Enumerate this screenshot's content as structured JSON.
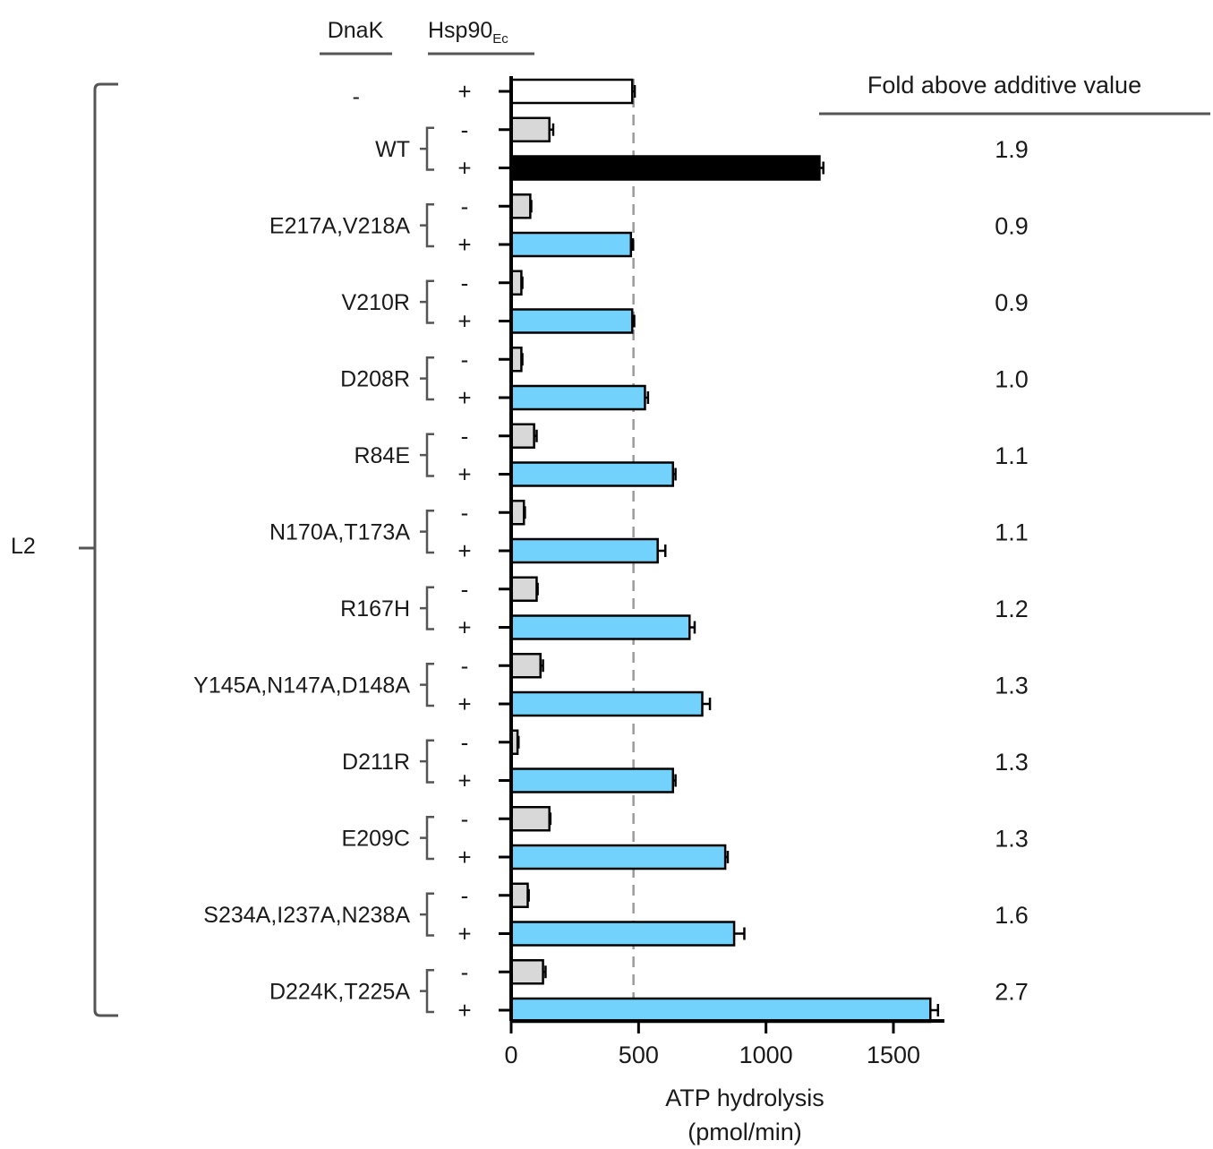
{
  "chart_data": {
    "type": "bar",
    "orientation": "horizontal",
    "column_headers": {
      "dnak": "DnaK",
      "hsp90": "Hsp90",
      "hsp90_subscript": "Ec"
    },
    "fold_header": "Fold above additive value",
    "group_label": "L2",
    "xlabel_line1": "ATP hydrolysis",
    "xlabel_line2": "(pmol/min)",
    "xlim": [
      0,
      1700
    ],
    "xticks": [
      0,
      500,
      1000,
      1500
    ],
    "reference_line": 480,
    "colors": {
      "dnak_alone": "#ffffff",
      "hsp90_alone": "#d8d8d8",
      "wt": "#000000",
      "mutant": "#73d2fb"
    },
    "rows": [
      {
        "label": "-",
        "hsp90": "+",
        "value": 475,
        "error": 10,
        "kind": "dnak_alone"
      },
      {
        "label": "WT",
        "hsp90_minus": "-",
        "hsp90_plus": "+",
        "minus_value": 150,
        "minus_error": 15,
        "plus_value": 1210,
        "plus_error": 15,
        "fold": "1.9",
        "kind": "wt"
      },
      {
        "label": "E217A,V218A",
        "hsp90_minus": "-",
        "hsp90_plus": "+",
        "minus_value": 75,
        "minus_error": 0,
        "plus_value": 470,
        "plus_error": 8,
        "fold": "0.9",
        "kind": "mutant"
      },
      {
        "label": "V210R",
        "hsp90_minus": "-",
        "hsp90_plus": "+",
        "minus_value": 40,
        "minus_error": 0,
        "plus_value": 475,
        "plus_error": 8,
        "fold": "0.9",
        "kind": "mutant"
      },
      {
        "label": "D208R",
        "hsp90_minus": "-",
        "hsp90_plus": "+",
        "minus_value": 40,
        "minus_error": 0,
        "plus_value": 525,
        "plus_error": 12,
        "fold": "1.0",
        "kind": "mutant"
      },
      {
        "label": "R84E",
        "hsp90_minus": "-",
        "hsp90_plus": "+",
        "minus_value": 90,
        "minus_error": 10,
        "plus_value": 635,
        "plus_error": 10,
        "fold": "1.1",
        "kind": "mutant"
      },
      {
        "label": "N170A,T173A",
        "hsp90_minus": "-",
        "hsp90_plus": "+",
        "minus_value": 50,
        "minus_error": 0,
        "plus_value": 575,
        "plus_error": 30,
        "fold": "1.1",
        "kind": "mutant"
      },
      {
        "label": "R167H",
        "hsp90_minus": "-",
        "hsp90_plus": "+",
        "minus_value": 100,
        "minus_error": 0,
        "plus_value": 700,
        "plus_error": 20,
        "fold": "1.2",
        "kind": "mutant"
      },
      {
        "label": "Y145A,N147A,D148A",
        "hsp90_minus": "-",
        "hsp90_plus": "+",
        "minus_value": 115,
        "minus_error": 10,
        "plus_value": 750,
        "plus_error": 30,
        "fold": "1.3",
        "kind": "mutant"
      },
      {
        "label": "D211R",
        "hsp90_minus": "-",
        "hsp90_plus": "+",
        "minus_value": 25,
        "minus_error": 0,
        "plus_value": 635,
        "plus_error": 10,
        "fold": "1.3",
        "kind": "mutant"
      },
      {
        "label": "E209C",
        "hsp90_minus": "-",
        "hsp90_plus": "+",
        "minus_value": 150,
        "minus_error": 0,
        "plus_value": 840,
        "plus_error": 10,
        "fold": "1.3",
        "kind": "mutant"
      },
      {
        "label": "S234A,I237A,N238A",
        "hsp90_minus": "-",
        "hsp90_plus": "+",
        "minus_value": 65,
        "minus_error": 0,
        "plus_value": 875,
        "plus_error": 40,
        "fold": "1.6",
        "kind": "mutant"
      },
      {
        "label": "D224K,T225A",
        "hsp90_minus": "-",
        "hsp90_plus": "+",
        "minus_value": 125,
        "minus_error": 10,
        "plus_value": 1645,
        "plus_error": 30,
        "fold": "2.7",
        "kind": "mutant"
      }
    ]
  }
}
